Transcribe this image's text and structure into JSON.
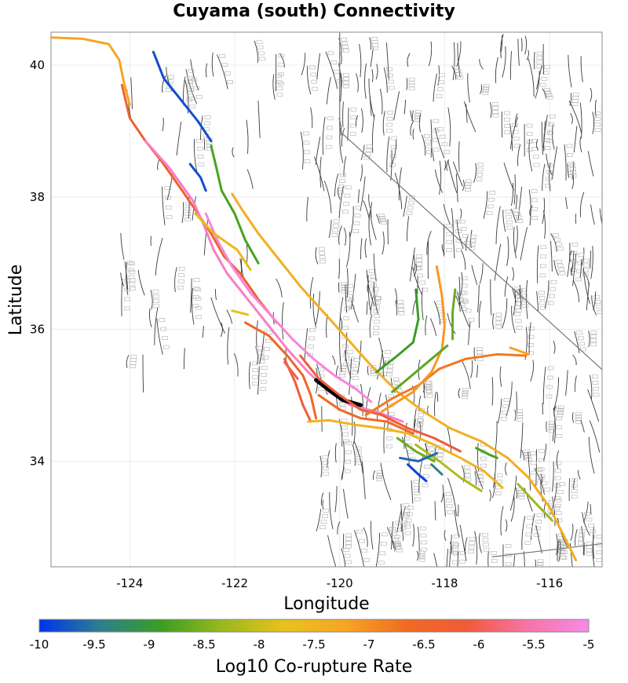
{
  "title": "Cuyama (south) Connectivity",
  "map": {
    "xlabel": "Longitude",
    "ylabel": "Latitude",
    "xlim": [
      -125.5,
      -115.0
    ],
    "ylim": [
      32.4,
      40.5
    ],
    "x_ticks": [
      -124,
      -122,
      -120,
      -118,
      -116
    ],
    "y_ticks": [
      34,
      36,
      38,
      40
    ],
    "x_tick_labels": [
      "-124",
      "-122",
      "-120",
      "-118",
      "-116"
    ],
    "y_tick_labels": [
      "34",
      "36",
      "38",
      "40"
    ],
    "grid": true
  },
  "colorbar": {
    "label": "Log10 Co-rupture Rate",
    "min": -10,
    "max": -5,
    "ticks": [
      "-10",
      "-9.5",
      "-9",
      "-8.5",
      "-8",
      "-7.5",
      "-7",
      "-6.5",
      "-6",
      "-5.5",
      "-5"
    ],
    "colors": [
      "#0033ee",
      "#2e7f8e",
      "#3a9e22",
      "#9ab81e",
      "#e8c21c",
      "#f6a623",
      "#f06b22",
      "#f05a3a",
      "#f774a8",
      "#f68be6"
    ]
  },
  "colored_faults": [
    {
      "rate": -7.2,
      "pts": [
        [
          -125.5,
          40.42
        ],
        [
          -124.9,
          40.4
        ],
        [
          -124.4,
          40.32
        ],
        [
          -124.2,
          40.08
        ],
        [
          -124.1,
          39.7
        ],
        [
          -124.0,
          39.4
        ]
      ]
    },
    {
      "rate": -6.3,
      "pts": [
        [
          -124.15,
          39.7
        ],
        [
          -124.0,
          39.2
        ],
        [
          -123.7,
          38.85
        ],
        [
          -123.4,
          38.55
        ],
        [
          -123.0,
          38.1
        ],
        [
          -122.7,
          37.75
        ],
        [
          -122.45,
          37.45
        ],
        [
          -122.2,
          37.1
        ],
        [
          -121.9,
          36.85
        ],
        [
          -121.55,
          36.45
        ],
        [
          -121.2,
          36.1
        ]
      ]
    },
    {
      "rate": -5.3,
      "pts": [
        [
          -123.7,
          38.85
        ],
        [
          -123.25,
          38.45
        ],
        [
          -122.8,
          37.95
        ],
        [
          -122.6,
          37.6
        ],
        [
          -122.4,
          37.2
        ],
        [
          -122.15,
          36.85
        ],
        [
          -121.8,
          36.5
        ],
        [
          -121.4,
          36.1
        ],
        [
          -121.0,
          35.7
        ],
        [
          -120.6,
          35.35
        ],
        [
          -120.2,
          35.05
        ],
        [
          -119.8,
          34.85
        ],
        [
          -119.3,
          34.75
        ],
        [
          -118.8,
          34.6
        ]
      ]
    },
    {
      "rate": -5.1,
      "pts": [
        [
          -122.55,
          37.75
        ],
        [
          -122.3,
          37.3
        ],
        [
          -122.05,
          36.95
        ],
        [
          -121.7,
          36.55
        ],
        [
          -121.3,
          36.2
        ],
        [
          -120.9,
          35.85
        ],
        [
          -120.5,
          35.55
        ],
        [
          -120.1,
          35.3
        ],
        [
          -119.7,
          35.1
        ],
        [
          -119.4,
          34.9
        ]
      ]
    },
    {
      "rate": -9.8,
      "pts": [
        [
          -123.55,
          40.2
        ],
        [
          -123.35,
          39.8
        ],
        [
          -123.05,
          39.5
        ],
        [
          -122.7,
          39.15
        ],
        [
          -122.45,
          38.85
        ]
      ]
    },
    {
      "rate": -9.8,
      "pts": [
        [
          -122.85,
          38.5
        ],
        [
          -122.65,
          38.3
        ],
        [
          -122.55,
          38.1
        ]
      ]
    },
    {
      "rate": -8.8,
      "pts": [
        [
          -122.45,
          38.78
        ],
        [
          -122.35,
          38.45
        ],
        [
          -122.25,
          38.1
        ],
        [
          -122.0,
          37.75
        ],
        [
          -121.8,
          37.35
        ],
        [
          -121.55,
          37.0
        ]
      ]
    },
    {
      "rate": -7.4,
      "pts": [
        [
          -122.05,
          38.05
        ],
        [
          -121.85,
          37.8
        ],
        [
          -121.55,
          37.45
        ],
        [
          -121.2,
          37.1
        ],
        [
          -120.75,
          36.65
        ],
        [
          -120.3,
          36.25
        ],
        [
          -119.85,
          35.85
        ],
        [
          -119.4,
          35.45
        ],
        [
          -118.9,
          35.05
        ],
        [
          -118.4,
          34.75
        ],
        [
          -117.9,
          34.5
        ],
        [
          -117.3,
          34.3
        ],
        [
          -116.8,
          34.05
        ],
        [
          -116.4,
          33.75
        ],
        [
          -116.0,
          33.3
        ],
        [
          -115.75,
          32.9
        ],
        [
          -115.5,
          32.5
        ]
      ]
    },
    {
      "rate": -7.6,
      "pts": [
        [
          -122.75,
          37.75
        ],
        [
          -122.4,
          37.45
        ],
        [
          -121.95,
          37.2
        ],
        [
          -121.7,
          36.9
        ]
      ]
    },
    {
      "rate": -6.5,
      "pts": [
        [
          -121.8,
          36.1
        ],
        [
          -121.35,
          35.9
        ],
        [
          -121.0,
          35.6
        ],
        [
          -120.7,
          35.3
        ],
        [
          -120.55,
          35.0
        ],
        [
          -120.45,
          34.65
        ]
      ]
    },
    {
      "rate": -6.2,
      "pts": [
        [
          -121.05,
          35.55
        ],
        [
          -120.85,
          35.2
        ],
        [
          -120.7,
          34.85
        ],
        [
          -120.55,
          34.6
        ]
      ]
    },
    {
      "rate": -10.0,
      "pts": [
        [
          -120.45,
          35.23
        ],
        [
          -120.2,
          35.08
        ],
        [
          -119.95,
          34.93
        ],
        [
          -119.6,
          34.85
        ]
      ]
    },
    {
      "rate": -6.1,
      "pts": [
        [
          -120.75,
          35.6
        ],
        [
          -120.4,
          35.25
        ],
        [
          -120.0,
          35.0
        ],
        [
          -119.6,
          34.78
        ],
        [
          -119.2,
          34.7
        ],
        [
          -118.7,
          34.5
        ],
        [
          -118.2,
          34.35
        ],
        [
          -117.7,
          34.15
        ]
      ]
    },
    {
      "rate": -6.6,
      "pts": [
        [
          -120.4,
          35.0
        ],
        [
          -120.0,
          34.78
        ],
        [
          -119.6,
          34.65
        ],
        [
          -119.1,
          34.6
        ],
        [
          -118.6,
          34.42
        ]
      ]
    },
    {
      "rate": -7.5,
      "pts": [
        [
          -120.6,
          34.6
        ],
        [
          -120.2,
          34.62
        ],
        [
          -119.7,
          34.55
        ],
        [
          -119.2,
          34.5
        ],
        [
          -118.7,
          34.42
        ],
        [
          -118.2,
          34.25
        ],
        [
          -117.7,
          34.05
        ],
        [
          -117.25,
          33.85
        ],
        [
          -116.9,
          33.6
        ]
      ]
    },
    {
      "rate": -8.2,
      "pts": [
        [
          -118.55,
          34.25
        ],
        [
          -118.1,
          34.0
        ],
        [
          -117.7,
          33.75
        ],
        [
          -117.3,
          33.55
        ]
      ]
    },
    {
      "rate": -8.6,
      "pts": [
        [
          -118.9,
          34.35
        ],
        [
          -118.55,
          34.15
        ],
        [
          -118.2,
          34.0
        ]
      ]
    },
    {
      "rate": -6.8,
      "pts": [
        [
          -119.5,
          34.7
        ],
        [
          -119.0,
          34.95
        ],
        [
          -118.5,
          35.15
        ],
        [
          -118.1,
          35.4
        ],
        [
          -117.6,
          35.55
        ],
        [
          -117.0,
          35.62
        ],
        [
          -116.45,
          35.6
        ]
      ]
    },
    {
      "rate": -7.1,
      "pts": [
        [
          -119.2,
          34.75
        ],
        [
          -118.6,
          35.05
        ],
        [
          -118.25,
          35.35
        ],
        [
          -118.05,
          35.7
        ],
        [
          -118.0,
          36.05
        ],
        [
          -118.05,
          36.5
        ],
        [
          -118.15,
          36.95
        ]
      ]
    },
    {
      "rate": -8.9,
      "pts": [
        [
          -119.3,
          35.35
        ],
        [
          -118.9,
          35.6
        ],
        [
          -118.6,
          35.8
        ],
        [
          -118.5,
          36.15
        ],
        [
          -118.55,
          36.6
        ]
      ]
    },
    {
      "rate": -8.7,
      "pts": [
        [
          -119.0,
          35.05
        ],
        [
          -118.55,
          35.35
        ],
        [
          -118.25,
          35.55
        ],
        [
          -117.95,
          35.75
        ]
      ]
    },
    {
      "rate": -8.6,
      "pts": [
        [
          -117.85,
          35.85
        ],
        [
          -117.85,
          36.25
        ],
        [
          -117.8,
          36.6
        ]
      ]
    },
    {
      "rate": -9.6,
      "pts": [
        [
          -118.85,
          34.05
        ],
        [
          -118.5,
          34.0
        ],
        [
          -118.15,
          34.12
        ]
      ]
    },
    {
      "rate": -9.9,
      "pts": [
        [
          -118.7,
          33.95
        ],
        [
          -118.5,
          33.8
        ],
        [
          -118.35,
          33.7
        ]
      ]
    },
    {
      "rate": -9.4,
      "pts": [
        [
          -118.25,
          33.95
        ],
        [
          -118.05,
          33.8
        ]
      ]
    },
    {
      "rate": -8.8,
      "pts": [
        [
          -117.4,
          34.2
        ],
        [
          -117.15,
          34.1
        ],
        [
          -117.0,
          34.05
        ]
      ]
    },
    {
      "rate": -8.3,
      "pts": [
        [
          -116.6,
          33.65
        ],
        [
          -116.25,
          33.35
        ],
        [
          -115.95,
          33.1
        ]
      ]
    },
    {
      "rate": -7.2,
      "pts": [
        [
          -116.4,
          35.62
        ],
        [
          -116.75,
          35.72
        ]
      ]
    },
    {
      "rate": -6.0,
      "pts": [
        [
          -121.05,
          35.5
        ],
        [
          -120.8,
          35.25
        ]
      ]
    },
    {
      "rate": -7.8,
      "pts": [
        [
          -122.05,
          36.28
        ],
        [
          -121.75,
          36.22
        ]
      ]
    }
  ]
}
